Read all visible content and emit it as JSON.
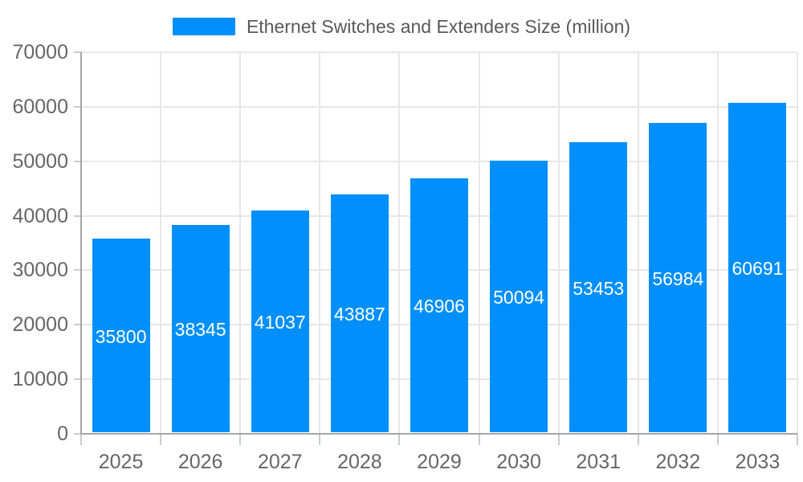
{
  "legend": {
    "label": "Ethernet Switches and Extenders Size (million)"
  },
  "chart_data": {
    "type": "bar",
    "title": "Ethernet Switches and Extenders Size (million)",
    "categories": [
      "2025",
      "2026",
      "2027",
      "2028",
      "2029",
      "2030",
      "2031",
      "2032",
      "2033"
    ],
    "series": [
      {
        "name": "Ethernet Switches and Extenders Size (million)",
        "values": [
          35800,
          38345,
          41037,
          43887,
          46906,
          50094,
          53453,
          56984,
          60691
        ]
      }
    ],
    "xlabel": "",
    "ylabel": "",
    "ylim": [
      0,
      70000
    ],
    "ytick_step": 10000,
    "ytick_labels": [
      "0",
      "10000",
      "20000",
      "30000",
      "40000",
      "50000",
      "60000",
      "70000"
    ],
    "grid": true,
    "legend_position": "top",
    "value_labels": "inside-center",
    "colors": {
      "bar": "#008FFB",
      "value_label_text": "#ffffff",
      "axis_text": "#666666",
      "grid_line": "#e7e7e7",
      "axis_line": "#a6a6a6",
      "tick_line": "#cccccc",
      "background": "#ffffff"
    }
  }
}
